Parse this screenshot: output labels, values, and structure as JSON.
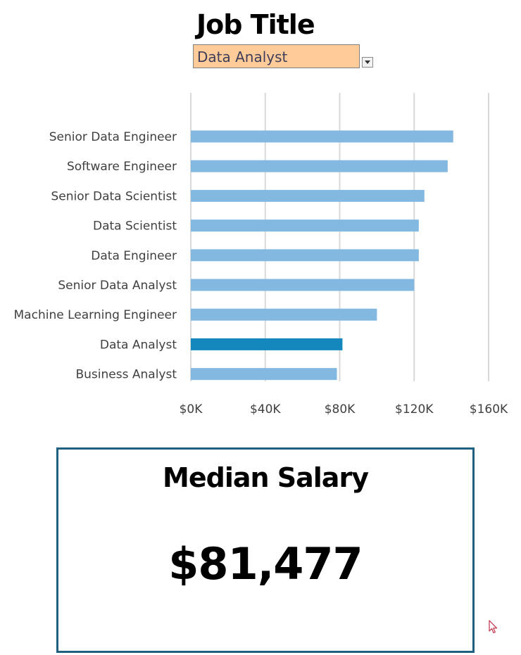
{
  "header": {
    "title": "Job Title"
  },
  "filter": {
    "selected": "Data Analyst"
  },
  "kpi": {
    "label": "Median Salary",
    "value": "$81,477"
  },
  "colors": {
    "bar": "#83b8e0",
    "highlight": "#1488bd",
    "kpi_border": "#1f5f80",
    "filter_bg": "#ffcc99"
  },
  "chart_data": {
    "type": "bar",
    "orientation": "horizontal",
    "categories": [
      "Senior Data Engineer",
      "Software Engineer",
      "Senior Data Scientist",
      "Data Scientist",
      "Data Engineer",
      "Senior Data Analyst",
      "Machine Learning Engineer",
      "Data Analyst",
      "Business Analyst"
    ],
    "values": [
      141000,
      138000,
      125500,
      122500,
      122500,
      120000,
      100000,
      81477,
      78500
    ],
    "highlighted_category": "Data Analyst",
    "xlim": [
      0,
      160000
    ],
    "xticks": [
      0,
      40000,
      80000,
      120000,
      160000
    ],
    "xtick_labels": [
      "$0K",
      "$40K",
      "$80K",
      "$120K",
      "$160K"
    ],
    "grid": true,
    "legend": "none"
  }
}
